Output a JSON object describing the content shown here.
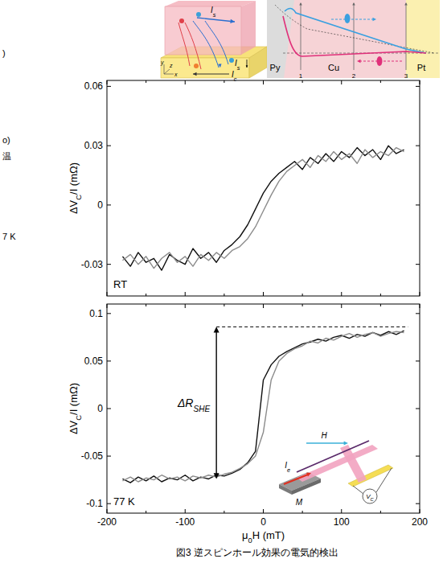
{
  "margin_text": [
    ")",
    "o)",
    "温",
    "7 K"
  ],
  "schematic": {
    "spin_current": {
      "main": "I",
      "sub": "s"
    },
    "spin_current_lower": {
      "main": "I",
      "sub": "s"
    },
    "charge_current": {
      "main": "I",
      "sub": "c"
    },
    "axes": [
      "x",
      "y",
      "z"
    ]
  },
  "profile": {
    "regions": [
      "Py",
      "Cu",
      "Pt"
    ],
    "positions": [
      "1",
      "2",
      "3"
    ]
  },
  "chart_data": [
    {
      "type": "line",
      "label": "RT",
      "y_label": {
        "main": "ΔV",
        "sub": "C",
        "rest": "/I (mΩ)"
      },
      "x": [
        -180,
        -170,
        -160,
        -150,
        -140,
        -130,
        -120,
        -110,
        -100,
        -90,
        -80,
        -70,
        -60,
        -50,
        -40,
        -30,
        -20,
        -10,
        0,
        10,
        20,
        30,
        40,
        50,
        60,
        70,
        80,
        90,
        100,
        110,
        120,
        130,
        140,
        150,
        160,
        170,
        180
      ],
      "xlim": [
        -200,
        200
      ],
      "xticks": [
        -200,
        -100,
        0,
        100,
        200
      ],
      "ylim": [
        -0.046,
        0.063
      ],
      "yticks": [
        -0.03,
        0,
        0.03,
        0.06
      ],
      "tick_labels": "y",
      "series": [
        {
          "color": "#111111",
          "values": [
            -0.026,
            -0.031,
            -0.024,
            -0.029,
            -0.027,
            -0.033,
            -0.025,
            -0.028,
            -0.03,
            -0.022,
            -0.027,
            -0.024,
            -0.029,
            -0.023,
            -0.02,
            -0.016,
            -0.01,
            -0.002,
            0.006,
            0.012,
            0.016,
            0.019,
            0.022,
            0.018,
            0.024,
            0.021,
            0.026,
            0.022,
            0.027,
            0.024,
            0.029,
            0.025,
            0.028,
            0.023,
            0.03,
            0.026,
            0.028
          ]
        },
        {
          "color": "#8c8c8c",
          "values": [
            -0.028,
            -0.025,
            -0.03,
            -0.026,
            -0.032,
            -0.027,
            -0.024,
            -0.029,
            -0.026,
            -0.031,
            -0.025,
            -0.028,
            -0.024,
            -0.027,
            -0.023,
            -0.021,
            -0.017,
            -0.011,
            -0.003,
            0.005,
            0.012,
            0.017,
            0.02,
            0.023,
            0.019,
            0.025,
            0.022,
            0.027,
            0.023,
            0.026,
            0.021,
            0.028,
            0.024,
            0.027,
            0.025,
            0.029,
            0.027
          ]
        }
      ]
    },
    {
      "type": "line",
      "label": "77 K",
      "y_label": {
        "main": "ΔV",
        "sub": "C",
        "rest": "/I (mΩ)"
      },
      "x_label": {
        "main": "μ",
        "sub": "0",
        "rest": "H (mT)"
      },
      "x": [
        -180,
        -170,
        -160,
        -150,
        -140,
        -130,
        -120,
        -110,
        -100,
        -90,
        -80,
        -70,
        -60,
        -50,
        -40,
        -30,
        -20,
        -10,
        0,
        10,
        20,
        30,
        40,
        50,
        60,
        70,
        80,
        90,
        100,
        110,
        120,
        130,
        140,
        150,
        160,
        170,
        180
      ],
      "xlim": [
        -200,
        200
      ],
      "xticks": [
        -200,
        -100,
        0,
        100,
        200
      ],
      "ylim": [
        -0.11,
        0.11
      ],
      "yticks": [
        -0.1,
        -0.05,
        0,
        0.05,
        0.1
      ],
      "series": [
        {
          "color": "#111111",
          "values": [
            -0.074,
            -0.078,
            -0.072,
            -0.076,
            -0.071,
            -0.077,
            -0.073,
            -0.075,
            -0.07,
            -0.076,
            -0.072,
            -0.074,
            -0.07,
            -0.071,
            -0.068,
            -0.064,
            -0.057,
            -0.045,
            0.03,
            0.046,
            0.055,
            0.06,
            0.064,
            0.068,
            0.07,
            0.073,
            0.071,
            0.075,
            0.077,
            0.074,
            0.078,
            0.076,
            0.08,
            0.077,
            0.081,
            0.078,
            0.082
          ]
        },
        {
          "color": "#8c8c8c",
          "values": [
            -0.076,
            -0.072,
            -0.077,
            -0.073,
            -0.075,
            -0.07,
            -0.074,
            -0.072,
            -0.076,
            -0.071,
            -0.073,
            -0.07,
            -0.072,
            -0.069,
            -0.067,
            -0.063,
            -0.058,
            -0.05,
            -0.025,
            0.03,
            0.05,
            0.058,
            0.063,
            0.066,
            0.071,
            0.069,
            0.074,
            0.072,
            0.076,
            0.079,
            0.075,
            0.078,
            0.08,
            0.076,
            0.079,
            0.081,
            0.08
          ]
        }
      ],
      "delta": {
        "label": {
          "main": "ΔR",
          "sub": "SHE"
        },
        "x": -60,
        "y_low": -0.074,
        "y_high": 0.086,
        "line_end": 185
      },
      "inset": {
        "field": "H",
        "current": {
          "main": "I",
          "sub": "e"
        },
        "magnetization": "M",
        "voltage": {
          "main": "V",
          "sub": "C"
        }
      }
    }
  ],
  "caption": "図3 逆スピンホール効果の電気的検出"
}
